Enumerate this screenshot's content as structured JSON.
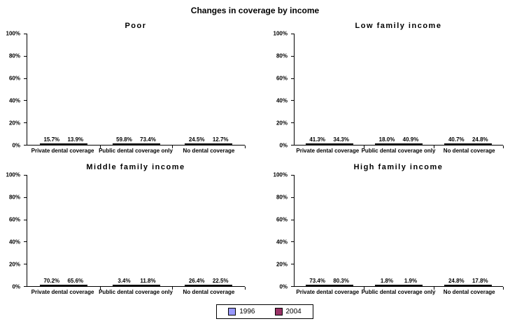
{
  "title": "Changes in coverage by income",
  "colors": {
    "series_1996": "#9999FF",
    "series_2004": "#993366",
    "bar_border": "#000000",
    "background": "#FFFFFF"
  },
  "legend": {
    "position": "bottom-center",
    "items": [
      {
        "label": "1996",
        "color": "#9999FF"
      },
      {
        "label": "2004",
        "color": "#993366"
      }
    ]
  },
  "chart_data": [
    {
      "type": "bar",
      "title": "Poor",
      "categories": [
        "Private dental coverage",
        "Public dental coverage only",
        "No dental coverage"
      ],
      "series": [
        {
          "name": "1996",
          "color": "#9999FF",
          "values": [
            15.7,
            59.8,
            24.5
          ]
        },
        {
          "name": "2004",
          "color": "#993366",
          "values": [
            13.9,
            73.4,
            12.7
          ]
        }
      ],
      "ylim": [
        0,
        100
      ],
      "yticks": [
        0,
        20,
        40,
        60,
        80,
        100
      ],
      "ytick_suffix": "%",
      "grid": false,
      "data_labels": true
    },
    {
      "type": "bar",
      "title": "Low family income",
      "categories": [
        "Private dental coverage",
        "Public dental coverage only",
        "No dental coverage"
      ],
      "series": [
        {
          "name": "1996",
          "color": "#9999FF",
          "values": [
            41.3,
            18.0,
            40.7
          ]
        },
        {
          "name": "2004",
          "color": "#993366",
          "values": [
            34.3,
            40.9,
            24.8
          ]
        }
      ],
      "ylim": [
        0,
        100
      ],
      "yticks": [
        0,
        20,
        40,
        60,
        80,
        100
      ],
      "ytick_suffix": "%",
      "grid": false,
      "data_labels": true
    },
    {
      "type": "bar",
      "title": "Middle family income",
      "categories": [
        "Private dental coverage",
        "Public dental coverage only",
        "No dental coverage"
      ],
      "series": [
        {
          "name": "1996",
          "color": "#9999FF",
          "values": [
            70.2,
            3.4,
            26.4
          ]
        },
        {
          "name": "2004",
          "color": "#993366",
          "values": [
            65.6,
            11.8,
            22.5
          ]
        }
      ],
      "ylim": [
        0,
        100
      ],
      "yticks": [
        0,
        20,
        40,
        60,
        80,
        100
      ],
      "ytick_suffix": "%",
      "grid": false,
      "data_labels": true
    },
    {
      "type": "bar",
      "title": "High family income",
      "categories": [
        "Private dental coverage",
        "Public dental coverage only",
        "No dental coverage"
      ],
      "series": [
        {
          "name": "1996",
          "color": "#9999FF",
          "values": [
            73.4,
            1.8,
            24.8
          ]
        },
        {
          "name": "2004",
          "color": "#993366",
          "values": [
            80.3,
            1.9,
            17.8
          ]
        }
      ],
      "ylim": [
        0,
        100
      ],
      "yticks": [
        0,
        20,
        40,
        60,
        80,
        100
      ],
      "ytick_suffix": "%",
      "grid": false,
      "data_labels": true
    }
  ]
}
